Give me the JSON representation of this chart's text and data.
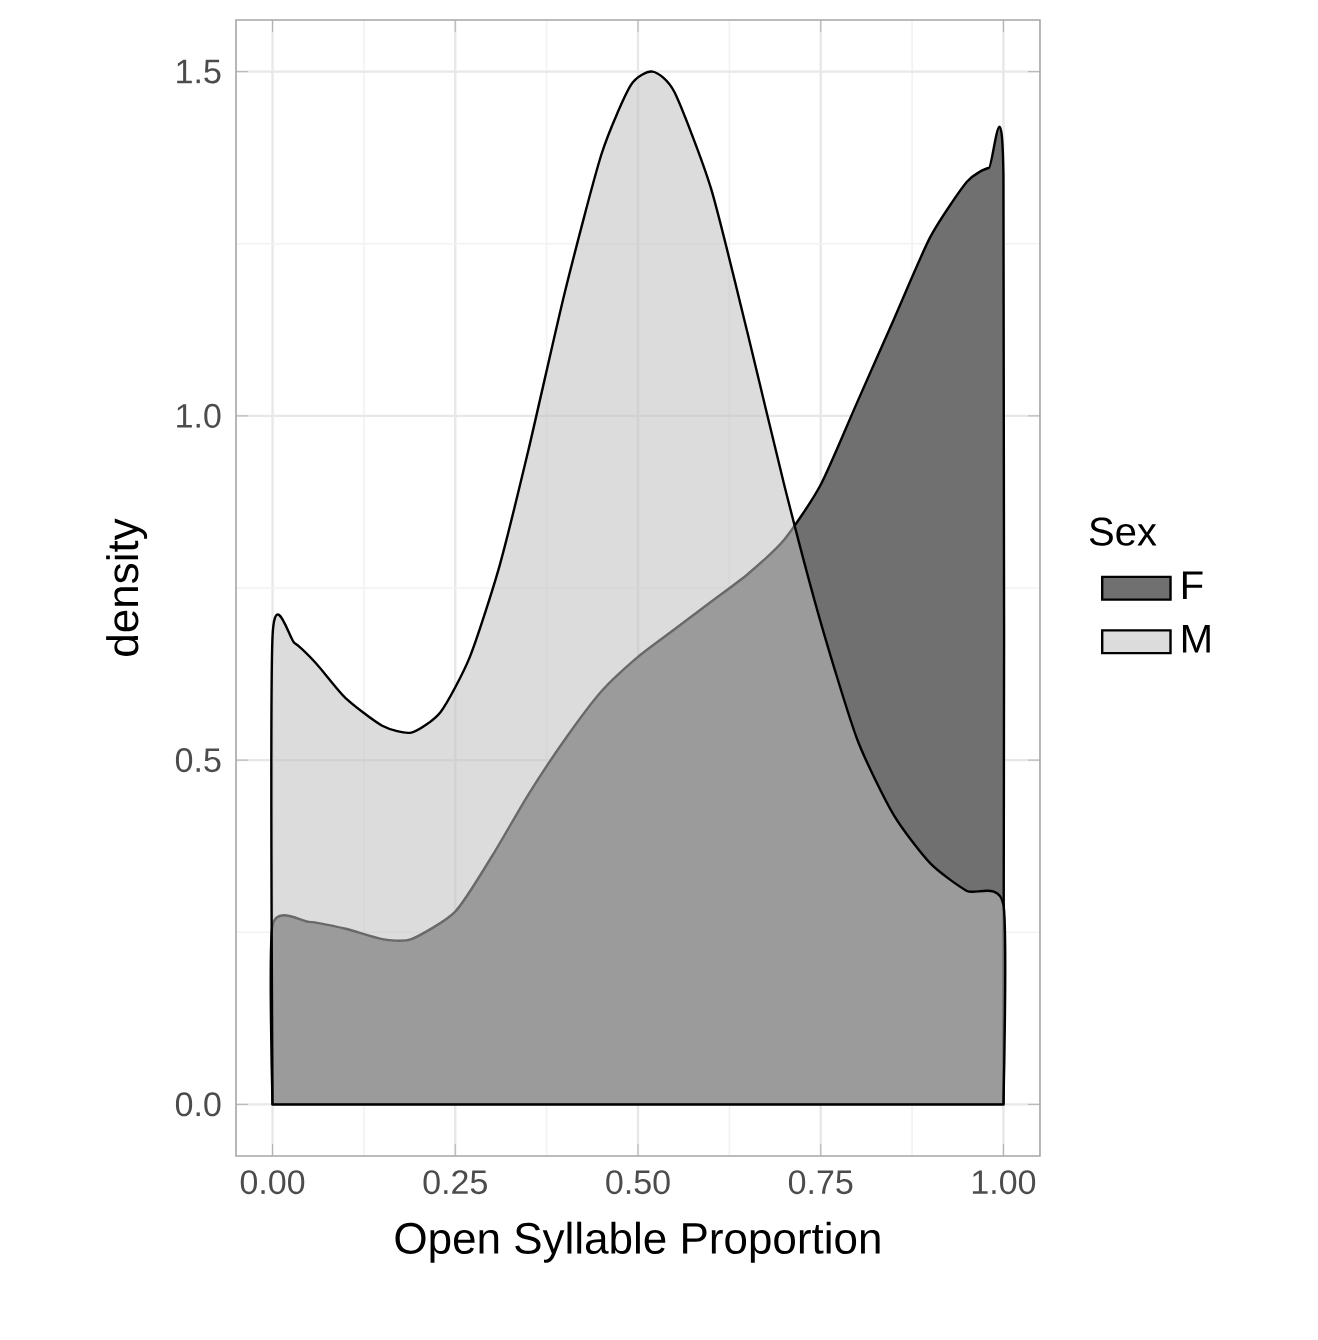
{
  "chart_data": {
    "type": "area",
    "xlabel": "Open Syllable Proportion",
    "ylabel": "density",
    "legend_title": "Sex",
    "legend": "right",
    "grid": true,
    "xlim": [
      -0.05,
      1.05
    ],
    "ylim": [
      -0.075,
      1.575
    ],
    "xticks": [
      {
        "value": 0,
        "label": "0.00"
      },
      0.25,
      {
        "value": 0.5,
        "label": "0.50"
      },
      0.75,
      {
        "value": 1,
        "label": "1.00"
      }
    ],
    "yticks": [
      {
        "value": 0,
        "label": "0.0"
      },
      0.5,
      {
        "value": 1,
        "label": "1.0"
      },
      1.5
    ],
    "series": [
      {
        "name": "F",
        "color": "#707070",
        "x": [
          0,
          0.05,
          0.1,
          0.15,
          0.19,
          0.25,
          0.3,
          0.35,
          0.4,
          0.45,
          0.5,
          0.55,
          0.6,
          0.65,
          0.7,
          0.75,
          0.8,
          0.85,
          0.9,
          0.95,
          0.98,
          1.0
        ],
        "values": [
          0.26,
          0.265,
          0.255,
          0.24,
          0.24,
          0.28,
          0.36,
          0.45,
          0.53,
          0.6,
          0.65,
          0.69,
          0.73,
          0.77,
          0.82,
          0.9,
          1.02,
          1.14,
          1.26,
          1.34,
          1.36,
          1.35
        ]
      },
      {
        "name": "M",
        "color": "#dcdcdc",
        "x": [
          0,
          0.03,
          0.06,
          0.1,
          0.15,
          0.19,
          0.23,
          0.27,
          0.31,
          0.35,
          0.4,
          0.45,
          0.49,
          0.52,
          0.55,
          0.6,
          0.65,
          0.7,
          0.75,
          0.8,
          0.85,
          0.9,
          0.95,
          1.0
        ],
        "values": [
          0.68,
          0.67,
          0.64,
          0.59,
          0.55,
          0.54,
          0.57,
          0.65,
          0.78,
          0.95,
          1.18,
          1.38,
          1.48,
          1.5,
          1.47,
          1.33,
          1.12,
          0.9,
          0.7,
          0.53,
          0.42,
          0.35,
          0.31,
          0.29
        ]
      }
    ]
  }
}
